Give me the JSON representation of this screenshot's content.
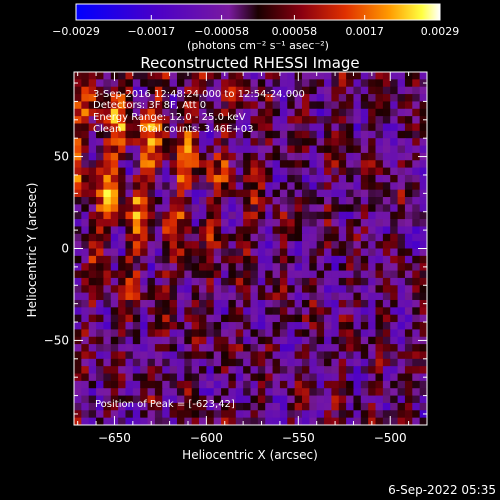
{
  "chart_data": {
    "type": "heatmap",
    "title": "Reconstructed RHESSI Image",
    "xlabel": "Heliocentric X (arcsec)",
    "ylabel": "Heliocentric Y (arcsec)",
    "xlim": [
      -672,
      -480
    ],
    "ylim": [
      -96,
      96
    ],
    "x_ticks": [
      -650,
      -600,
      -550,
      -500
    ],
    "x_tick_labels": [
      "−650",
      "−600",
      "−550",
      "−500"
    ],
    "y_ticks": [
      -50,
      0,
      50
    ],
    "y_tick_labels": [
      "−50",
      "0",
      "50"
    ],
    "colorbar": {
      "ticks": [
        -0.0029,
        -0.0017,
        -0.00058,
        0.00058,
        0.0017,
        0.0029
      ],
      "tick_labels": [
        "−0.0029",
        "−0.0017",
        "−0.00058",
        "0.00058",
        "0.0017",
        "0.0029"
      ],
      "range": [
        -0.0029,
        0.0029
      ],
      "unit_label": "(photons cm⁻² s⁻¹ asec⁻²)",
      "colors": [
        "#0000ff",
        "#ffffff"
      ]
    },
    "annotations": [
      "3-Sep-2016 12:48:24.000 to 12:54:24.000",
      "Detectors: 3F 8F, Att 0",
      "Energy Range: 12.0 - 25.0 keV",
      "Clean     Total counts: 3.46E+03"
    ],
    "peak_label": "Position of Peak = [-623,42]",
    "peak_position": [
      -623,
      42
    ],
    "grid": false
  },
  "footer": {
    "date": "6-Sep-2022 05:35"
  }
}
